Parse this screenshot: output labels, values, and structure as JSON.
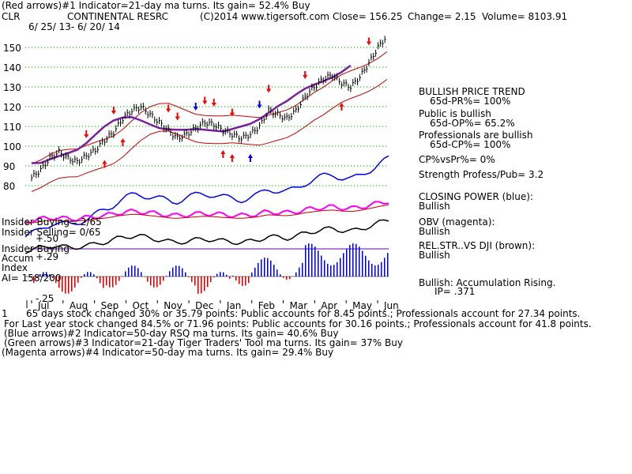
{
  "header": {
    "line1": "(Red arrows)#1 Indicator=21-day ma turns. Its gain= 52.4% Buy",
    "ticker": "CLR",
    "company": "CONTINENTAL RESRC",
    "copyright": "(C)2014 www.tigersoft.com",
    "close": "Close= 156.25",
    "change": "Change= 2.15",
    "volume": "Volume= 8103.91",
    "date_range": "6/ 25/ 13- 6/ 20/ 14"
  },
  "left_labels": {
    "insider_buying": "Insider Buying= 2/65",
    "insider_selling": "Insider Selling= 0/65",
    "insider_buying2": "Insider Buying",
    "accum": "Accum",
    "accum_val": "+.29",
    "index": "Index",
    "ai": "AI= 158/200",
    "plus50": "+.50",
    "minus25": "-.25"
  },
  "right_panel": {
    "bullish_trend": "BULLISH PRICE TREND",
    "pr": "65d-PR%= 100%",
    "public": "Public is bullish",
    "op": "65d-OP%= 65.2%",
    "pros": "Professionals are bullish",
    "cp": "65d-CP%= 100%",
    "cpvspr": "CP%vsPr%= 0%",
    "strength": "Strength Profess/Pub= 3.2",
    "closing_power": "CLOSING POWER (blue):",
    "cp_status": "Bullish",
    "obv": "OBV (magenta):",
    "obv_status": "Bullish",
    "relstr": "REL.STR..VS DJI (brown):",
    "relstr_status": "Bullish",
    "accum_rising": "Bullish: Accumulation Rising.",
    "ip": "IP= .371"
  },
  "footer": {
    "line1_prefix": "1",
    "line1": "65 days stock changed 30% or 35.79 points: Public accounts for 8.45 points.; Professionals account for 27.34 points.",
    "line2": "For Last year stock changed 84.5% or 71.96 points: Public accounts for 30.16 points.; Professionals account for 41.8 points.",
    "line3": "(Blue arrows)#2 Indicator=50-day RSQ ma turns. Its gain= 40.6% Buy",
    "line4": "(Green arrows)#3 Indicator=21-day Tiger Traders' Tool ma turns. Its gain= 37% Buy",
    "line5": "(Magenta arrows)#4 Indicator=50-day ma turns. Its gain= 29.4% Buy"
  },
  "chart_data": {
    "type": "line",
    "y_ticks": [
      80,
      90,
      100,
      110,
      120,
      130,
      140,
      150
    ],
    "ylim": [
      74,
      158
    ],
    "x_labels": [
      "Jul",
      "Aug",
      "Sep",
      "Oct",
      "Nov",
      "Dec",
      "Jan",
      "Feb",
      "Mar",
      "Apr",
      "May",
      "Jun"
    ],
    "grid": true,
    "price_series": {
      "name": "",
      "values": [
        84,
        88,
        94,
        97,
        94,
        92,
        95,
        98,
        103,
        107,
        114,
        118,
        120,
        116,
        112,
        108,
        104,
        106,
        109,
        112,
        111,
        108,
        106,
        104,
        106,
        110,
        118,
        116,
        114,
        118,
        125,
        130,
        134,
        136,
        132,
        130,
        135,
        142,
        150,
        156
      ]
    },
    "colors": {
      "price": "#000000",
      "bands": "#cc0000",
      "ma": "#7a1fa2",
      "closing_power": "#0000ff",
      "obv": "#ff00ff",
      "relstr": "#000000",
      "accum_pos": "#0000cc",
      "accum_neg": "#cc0000",
      "grid": "#009900"
    },
    "red_arrows_up": [
      8,
      10,
      21,
      22,
      24,
      34
    ],
    "red_arrows_down": [
      6,
      9,
      15,
      16,
      19,
      20,
      22,
      26,
      30,
      37
    ],
    "blue_arrows_down": [
      18,
      25
    ],
    "blue_arrows_up": [
      24
    ]
  }
}
